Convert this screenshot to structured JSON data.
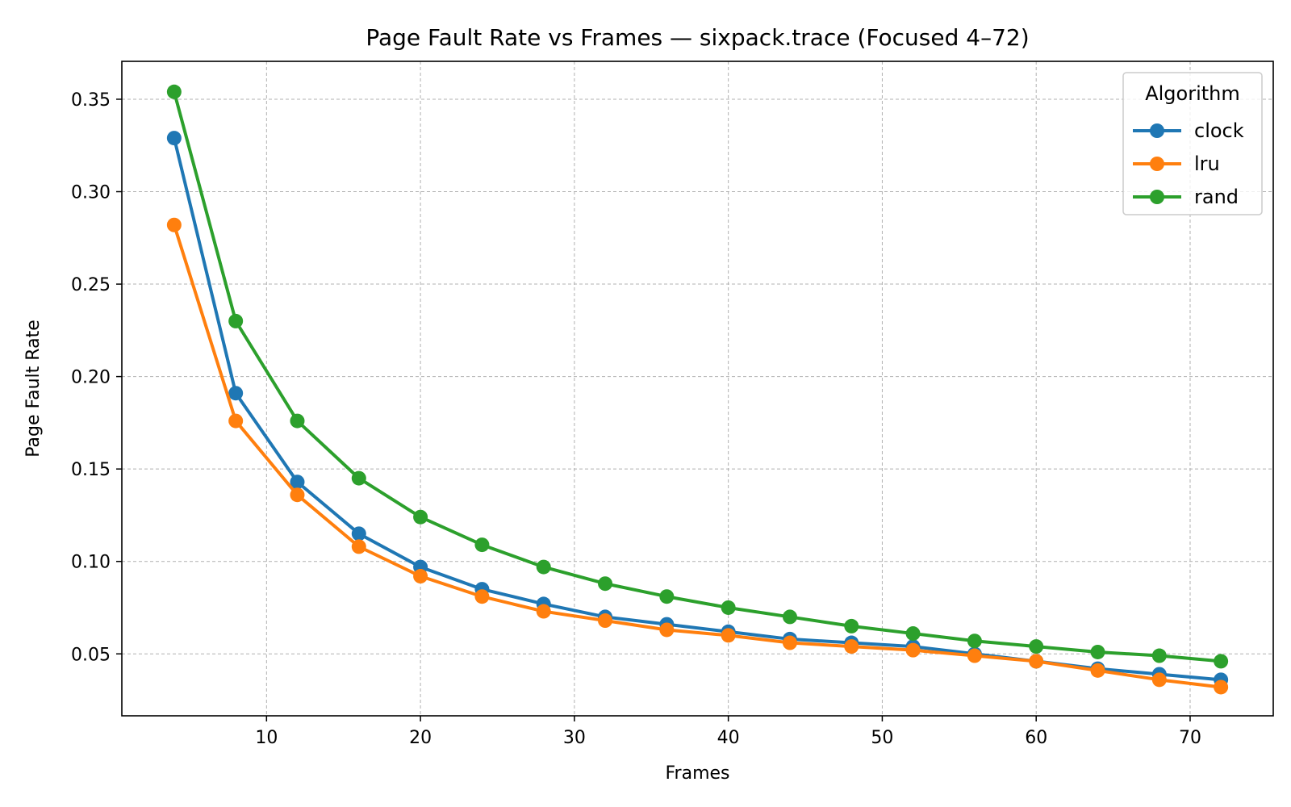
{
  "chart_data": {
    "type": "line",
    "title": "Page Fault Rate vs Frames — sixpack.trace (Focused 4–72)",
    "xlabel": "Frames",
    "ylabel": "Page Fault Rate",
    "xlim": [
      0.6,
      75.4
    ],
    "ylim": [
      0.0165,
      0.3705
    ],
    "xticks": [
      10,
      20,
      30,
      40,
      50,
      60,
      70
    ],
    "xtick_labels": [
      "10",
      "20",
      "30",
      "40",
      "50",
      "60",
      "70"
    ],
    "yticks": [
      0.05,
      0.1,
      0.15,
      0.2,
      0.25,
      0.3,
      0.35
    ],
    "ytick_labels": [
      "0.05",
      "0.10",
      "0.15",
      "0.20",
      "0.25",
      "0.30",
      "0.35"
    ],
    "grid": true,
    "legend": {
      "title": "Algorithm",
      "placement": "top-right"
    },
    "x": [
      4,
      8,
      12,
      16,
      20,
      24,
      28,
      32,
      36,
      40,
      44,
      48,
      52,
      56,
      60,
      64,
      68,
      72
    ],
    "series": [
      {
        "name": "clock",
        "color": "#1f77b4",
        "values": [
          0.329,
          0.191,
          0.143,
          0.115,
          0.097,
          0.085,
          0.077,
          0.07,
          0.066,
          0.062,
          0.058,
          0.056,
          0.054,
          0.05,
          0.046,
          0.042,
          0.039,
          0.036
        ]
      },
      {
        "name": "lru",
        "color": "#ff7f0e",
        "values": [
          0.282,
          0.176,
          0.136,
          0.108,
          0.092,
          0.081,
          0.073,
          0.068,
          0.063,
          0.06,
          0.056,
          0.054,
          0.052,
          0.049,
          0.046,
          0.041,
          0.036,
          0.032
        ]
      },
      {
        "name": "rand",
        "color": "#2ca02c",
        "values": [
          0.354,
          0.23,
          0.176,
          0.145,
          0.124,
          0.109,
          0.097,
          0.088,
          0.081,
          0.075,
          0.07,
          0.065,
          0.061,
          0.057,
          0.054,
          0.051,
          0.049,
          0.046
        ]
      }
    ]
  }
}
